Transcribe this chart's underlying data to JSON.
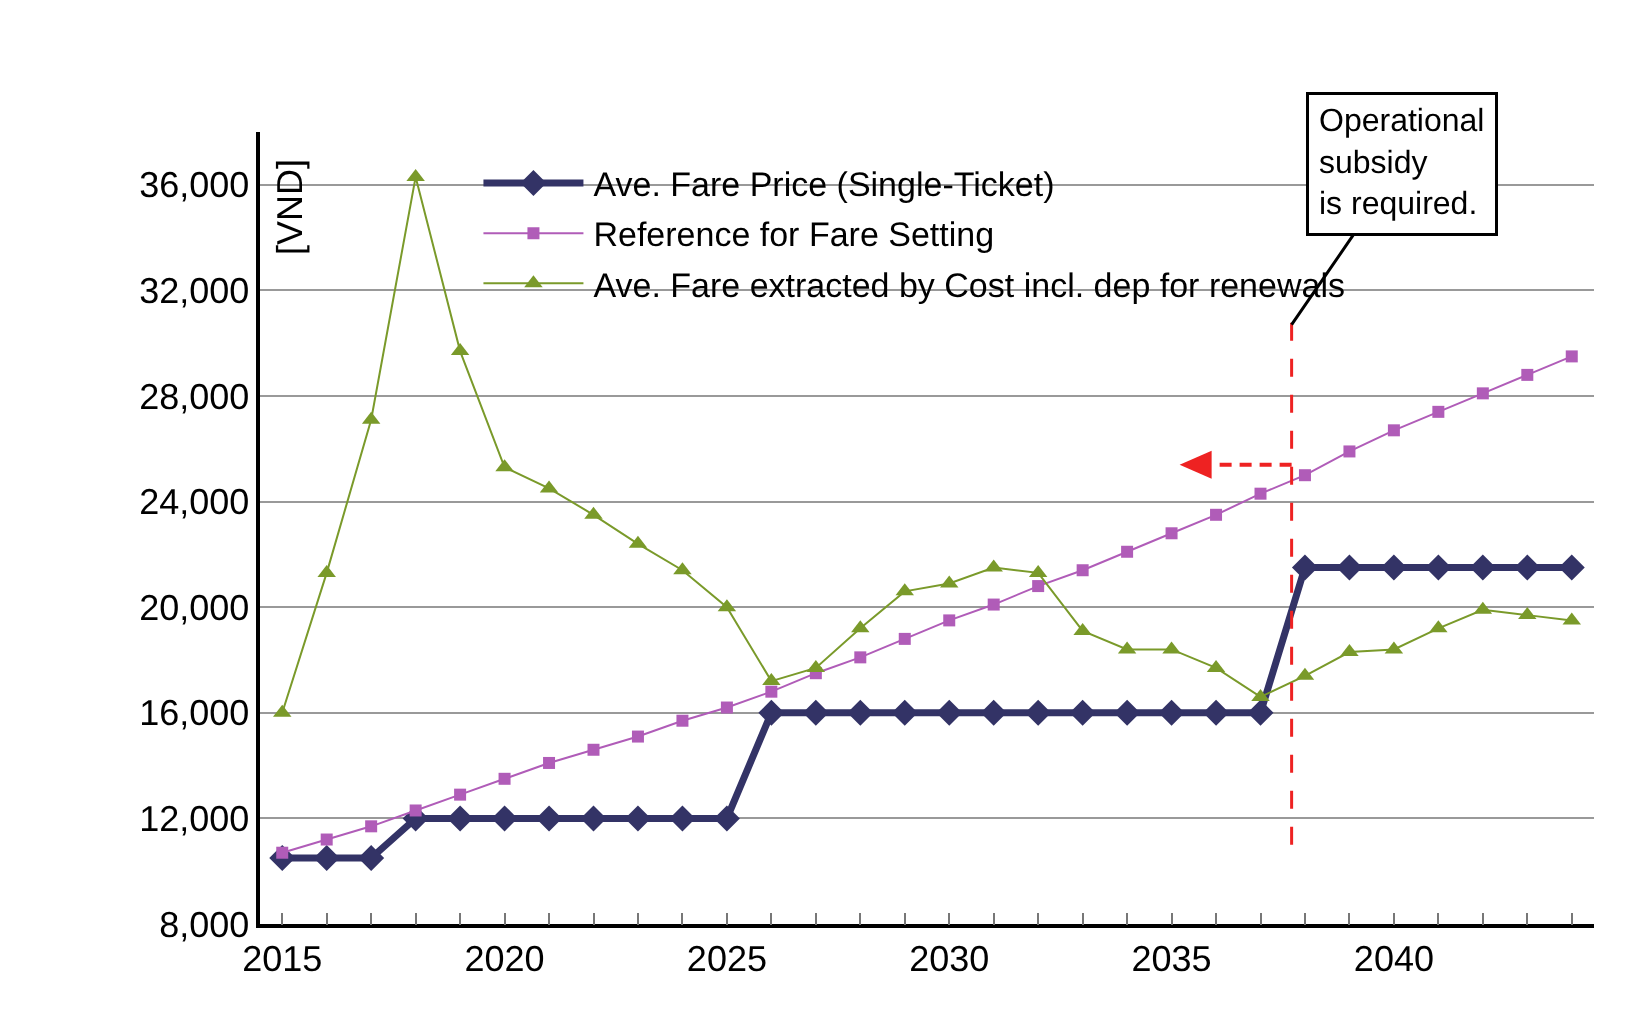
{
  "chart_data": {
    "type": "line",
    "ylabel": "[VND]",
    "x": [
      2015,
      2016,
      2017,
      2018,
      2019,
      2020,
      2021,
      2022,
      2023,
      2024,
      2025,
      2026,
      2027,
      2028,
      2029,
      2030,
      2031,
      2032,
      2033,
      2034,
      2035,
      2036,
      2037,
      2038,
      2039,
      2040,
      2041,
      2042,
      2043,
      2044
    ],
    "series": [
      {
        "name": "Ave. Fare Price (Single-Ticket)",
        "color": "#333366",
        "marker": "diamond",
        "values": [
          10500,
          10500,
          10500,
          12000,
          12000,
          12000,
          12000,
          12000,
          12000,
          12000,
          12000,
          16000,
          16000,
          16000,
          16000,
          16000,
          16000,
          16000,
          16000,
          16000,
          16000,
          16000,
          16000,
          21500,
          21500,
          21500,
          21500,
          21500,
          21500,
          21500
        ]
      },
      {
        "name": "Reference for Fare Setting",
        "color": "#b05cb8",
        "marker": "square",
        "values": [
          10700,
          11200,
          11700,
          12300,
          12900,
          13500,
          14100,
          14600,
          15100,
          15700,
          16200,
          16800,
          17500,
          18100,
          18800,
          19500,
          20100,
          20800,
          21400,
          22100,
          22800,
          23500,
          24300,
          25000,
          25900,
          26700,
          27400,
          28100,
          28800,
          29500
        ]
      },
      {
        "name": "Ave. Fare extracted by Cost incl. dep for renewals",
        "color": "#7a9a2a",
        "marker": "triangle",
        "values": [
          16000,
          21300,
          27100,
          36300,
          29700,
          25300,
          24500,
          23500,
          22400,
          21400,
          20000,
          17200,
          17700,
          19200,
          20600,
          20900,
          21500,
          21300,
          19100,
          18400,
          18400,
          17700,
          16600,
          17400,
          18300,
          18400,
          19200,
          19900,
          19700,
          19500
        ]
      }
    ],
    "xlim": [
      2014.5,
      2044.5
    ],
    "xticks": [
      2015,
      {
        "value": 2016,
        "label": null
      },
      {
        "value": 2017,
        "label": null
      },
      {
        "value": 2018,
        "label": null
      },
      {
        "value": 2019,
        "label": null
      },
      2020,
      {
        "value": 2021,
        "label": null
      },
      {
        "value": 2022,
        "label": null
      },
      {
        "value": 2023,
        "label": null
      },
      {
        "value": 2024,
        "label": null
      },
      2025,
      {
        "value": 2026,
        "label": null
      },
      {
        "value": 2027,
        "label": null
      },
      {
        "value": 2028,
        "label": null
      },
      {
        "value": 2029,
        "label": null
      },
      2030,
      {
        "value": 2031,
        "label": null
      },
      {
        "value": 2032,
        "label": null
      },
      {
        "value": 2033,
        "label": null
      },
      {
        "value": 2034,
        "label": null
      },
      2035,
      {
        "value": 2036,
        "label": null
      },
      {
        "value": 2037,
        "label": null
      },
      {
        "value": 2038,
        "label": null
      },
      {
        "value": 2039,
        "label": null
      },
      2040,
      {
        "value": 2041,
        "label": null
      },
      {
        "value": 2042,
        "label": null
      },
      {
        "value": 2043,
        "label": null
      },
      {
        "value": 2044,
        "label": null
      }
    ],
    "ylim": [
      8000,
      38000
    ],
    "yticks": [
      {
        "value": 8000,
        "label": "8,000"
      },
      {
        "value": 12000,
        "label": "12,000"
      },
      {
        "value": 16000,
        "label": "16,000"
      },
      {
        "value": 20000,
        "label": "20,000"
      },
      {
        "value": 24000,
        "label": "24,000"
      },
      {
        "value": 28000,
        "label": "28,000"
      },
      {
        "value": 32000,
        "label": "32,000"
      },
      {
        "value": 36000,
        "label": "36,000"
      }
    ],
    "grid": "y",
    "legend": "top left",
    "line_style": "solid",
    "ref_lines": [
      {
        "axis": "x",
        "value": 2037.7,
        "color": "#ee2222",
        "line_style": "dashed"
      }
    ],
    "annotations": [
      {
        "text": "Operational\nsubsidy\nis required.",
        "x": 2037.7,
        "y": 30700
      }
    ]
  }
}
